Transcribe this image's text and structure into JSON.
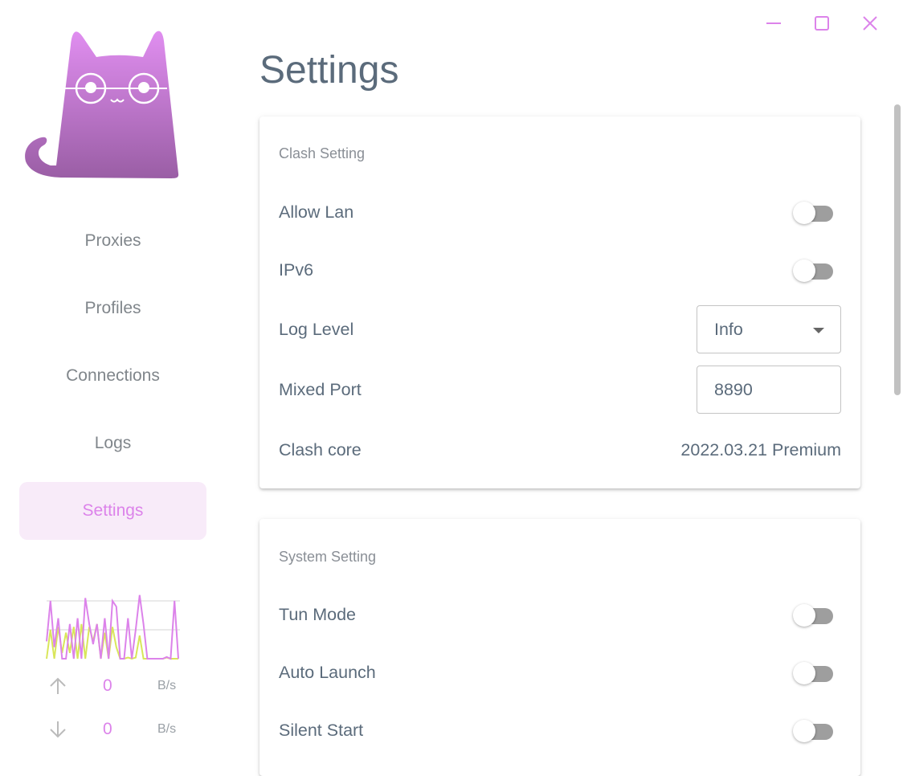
{
  "window": {
    "controls": [
      "minimize-icon",
      "maximize-icon",
      "close-icon"
    ],
    "accent": "#dc83ea"
  },
  "sidebar": {
    "items": [
      {
        "label": "Proxies"
      },
      {
        "label": "Profiles"
      },
      {
        "label": "Connections"
      },
      {
        "label": "Logs"
      },
      {
        "label": "Settings",
        "active": true
      }
    ],
    "traffic": {
      "upload_series": [
        0.3,
        1,
        0.2,
        0.7,
        0,
        0,
        0.6,
        0,
        0.7,
        0,
        1.05,
        0.6,
        0.25,
        0.6,
        0,
        0.7,
        0,
        1,
        0.9,
        0,
        0,
        0.7,
        0,
        0.5,
        1.1,
        0.6,
        0,
        0,
        0,
        0,
        0,
        0.03,
        0,
        1,
        0
      ],
      "download_series": [
        0,
        0.5,
        0,
        0.55,
        0.1,
        0.45,
        0.1,
        0.55,
        0,
        0.6,
        0,
        0.55,
        0.3,
        0.6,
        0,
        0.45,
        0,
        0.55,
        0.2,
        0,
        0,
        0.02,
        0,
        0.02,
        0.4,
        0,
        0,
        0,
        0,
        0,
        0,
        0.02,
        0,
        0,
        0
      ],
      "upload_value": "0",
      "download_value": "0",
      "unit": "B/s"
    }
  },
  "page": {
    "title": "Settings"
  },
  "clash_setting": {
    "title": "Clash Setting",
    "allow_lan": {
      "label": "Allow Lan",
      "on": false
    },
    "ipv6": {
      "label": "IPv6",
      "on": false
    },
    "log_level": {
      "label": "Log Level",
      "value": "Info"
    },
    "mixed_port": {
      "label": "Mixed Port",
      "value": "8890"
    },
    "clash_core": {
      "label": "Clash core",
      "value": "2022.03.21 Premium"
    }
  },
  "system_setting": {
    "title": "System Setting",
    "tun_mode": {
      "label": "Tun Mode",
      "on": false
    },
    "auto_launch": {
      "label": "Auto Launch",
      "on": false
    },
    "silent_start": {
      "label": "Silent Start",
      "on": false
    }
  }
}
